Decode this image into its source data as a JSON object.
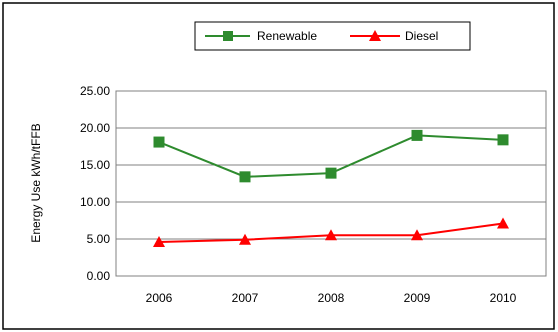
{
  "chart_data": {
    "type": "line",
    "title": "",
    "xlabel": "",
    "ylabel": "Energy Use kWh/tFFB",
    "categories": [
      "2006",
      "2007",
      "2008",
      "2009",
      "2010"
    ],
    "ylim": [
      0,
      25
    ],
    "yticks": [
      "0.00",
      "5.00",
      "10.00",
      "15.00",
      "20.00",
      "25.00"
    ],
    "grid": true,
    "legend": "top",
    "series": [
      {
        "name": "Renewable",
        "values": [
          18.1,
          13.4,
          13.9,
          19.0,
          18.4
        ],
        "color": "#2e8b2e",
        "marker": "square"
      },
      {
        "name": "Diesel",
        "values": [
          4.6,
          4.9,
          5.5,
          5.5,
          7.1
        ],
        "color": "#ff0000",
        "marker": "triangle"
      }
    ]
  }
}
